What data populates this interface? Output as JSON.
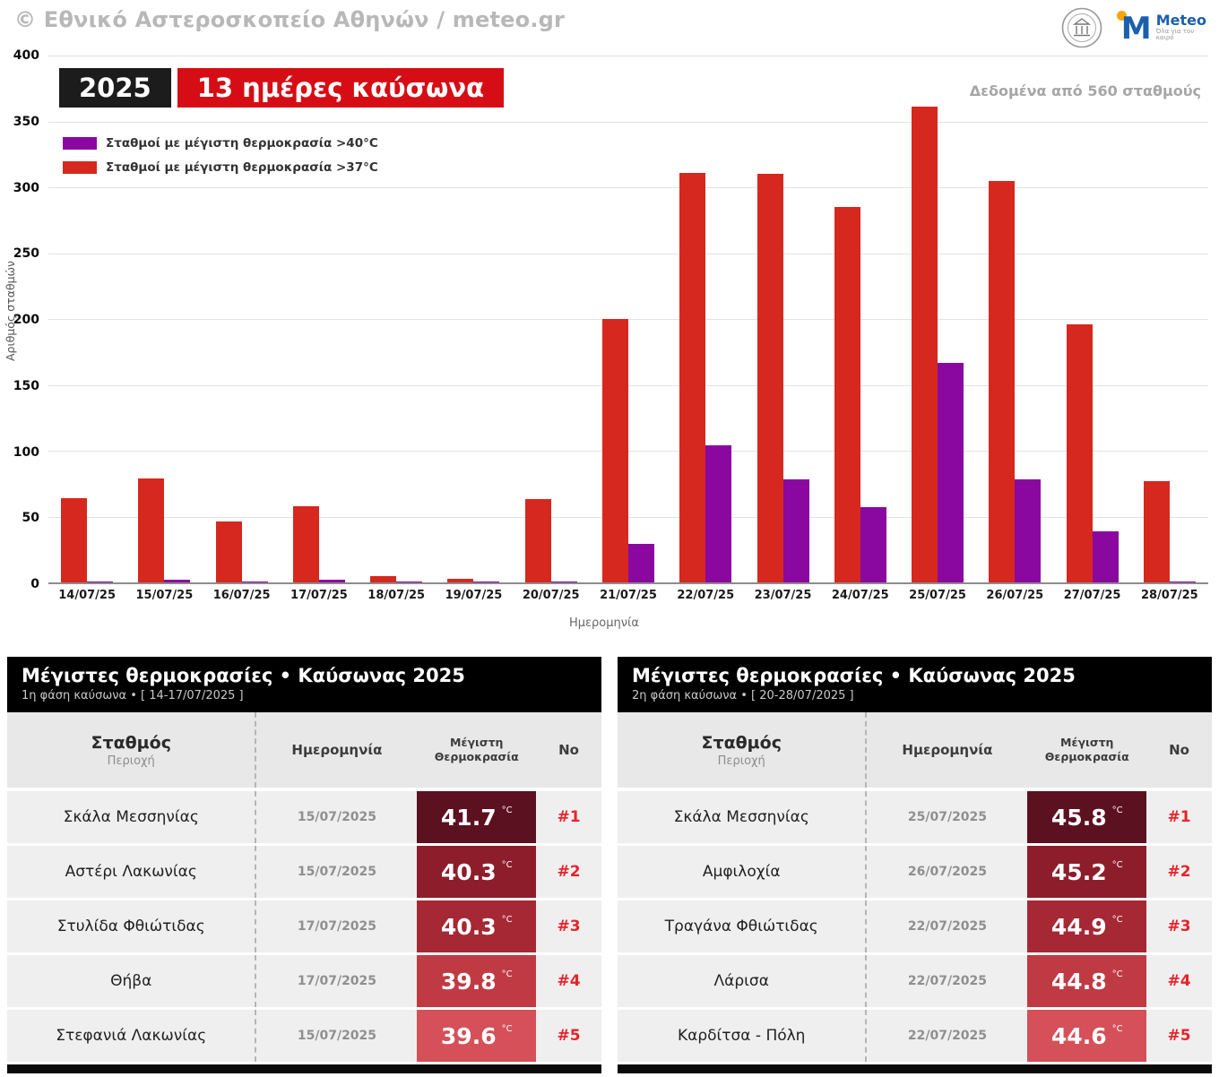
{
  "header": {
    "copyright": "© Εθνικό Αστεροσκοπείο Αθηνών / meteo.gr",
    "meteo_name": "Meteo",
    "meteo_tagline": "Όλα για τον καιρό"
  },
  "chart": {
    "year_badge": "2025",
    "title_badge": "13 ημέρες καύσωνα",
    "data_note": "Δεδομένα από 560 σταθμούς",
    "ylabel": "Αριθμός σταθμών",
    "xlabel": "Ημερομηνία",
    "legend": [
      {
        "label": "Σταθμοί με μέγιστη θερμοκρασία >40°C",
        "color": "#8a07a0"
      },
      {
        "label": "Σταθμοί με μέγιστη θερμοκρασία >37°C",
        "color": "#d6281e"
      }
    ]
  },
  "chart_data": {
    "type": "bar",
    "title": "2025 — 13 ημέρες καύσωνα",
    "categories": [
      "14/07/25",
      "15/07/25",
      "16/07/25",
      "17/07/25",
      "18/07/25",
      "19/07/25",
      "20/07/25",
      "21/07/25",
      "22/07/25",
      "23/07/25",
      "24/07/25",
      "25/07/25",
      "26/07/25",
      "27/07/25",
      "28/07/25"
    ],
    "series": [
      {
        "name": "Σταθμοί με μέγιστη θερμοκρασία >37°C",
        "color": "#d6281e",
        "values": [
          64,
          79,
          46,
          58,
          5,
          3,
          63,
          200,
          311,
          310,
          285,
          361,
          305,
          196,
          77
        ]
      },
      {
        "name": "Σταθμοί με μέγιστη θερμοκρασία >40°C",
        "color": "#8a07a0",
        "values": [
          1,
          2,
          1,
          2,
          1,
          1,
          1,
          29,
          104,
          78,
          57,
          167,
          78,
          39,
          1
        ]
      }
    ],
    "xlabel": "Ημερομηνία",
    "ylabel": "Αριθμός σταθμών",
    "ylim": [
      0,
      400
    ],
    "ytick_step": 50,
    "grid": true,
    "legend_position": "top-left",
    "annotation": "Δεδομένα από 560 σταθμούς"
  },
  "tables": [
    {
      "title": "Μέγιστες θερμοκρασίες • Καύσωνας 2025",
      "subtitle": "1η φάση καύσωνα • [ 14-17/07/2025 ]",
      "columns": {
        "station": "Σταθμός",
        "station_sub": "Περιοχή",
        "date": "Ημερομηνία",
        "temp": "Μέγιστη Θερμοκρασία",
        "rank": "No"
      },
      "rows": [
        {
          "station": "Σκάλα Μεσσηνίας",
          "date": "15/07/2025",
          "temp": "41.7",
          "unit": "°C",
          "rank": "#1",
          "color": "#5c1120"
        },
        {
          "station": "Αστέρι Λακωνίας",
          "date": "15/07/2025",
          "temp": "40.3",
          "unit": "°C",
          "rank": "#2",
          "color": "#8e1d2b"
        },
        {
          "station": "Στυλίδα Φθιώτιδας",
          "date": "17/07/2025",
          "temp": "40.3",
          "unit": "°C",
          "rank": "#3",
          "color": "#a52834"
        },
        {
          "station": "Θήβα",
          "date": "17/07/2025",
          "temp": "39.8",
          "unit": "°C",
          "rank": "#4",
          "color": "#c03a44"
        },
        {
          "station": "Στεφανιά Λακωνίας",
          "date": "15/07/2025",
          "temp": "39.6",
          "unit": "°C",
          "rank": "#5",
          "color": "#d55058"
        }
      ]
    },
    {
      "title": "Μέγιστες θερμοκρασίες • Καύσωνας 2025",
      "subtitle": "2η φάση καύσωνα • [ 20-28/07/2025 ]",
      "columns": {
        "station": "Σταθμός",
        "station_sub": "Περιοχή",
        "date": "Ημερομηνία",
        "temp": "Μέγιστη Θερμοκρασία",
        "rank": "No"
      },
      "rows": [
        {
          "station": "Σκάλα Μεσσηνίας",
          "date": "25/07/2025",
          "temp": "45.8",
          "unit": "°C",
          "rank": "#1",
          "color": "#5c1120"
        },
        {
          "station": "Αμφιλοχία",
          "date": "26/07/2025",
          "temp": "45.2",
          "unit": "°C",
          "rank": "#2",
          "color": "#8e1d2b"
        },
        {
          "station": "Τραγάνα Φθιώτιδας",
          "date": "22/07/2025",
          "temp": "44.9",
          "unit": "°C",
          "rank": "#3",
          "color": "#a52834"
        },
        {
          "station": "Λάρισα",
          "date": "22/07/2025",
          "temp": "44.8",
          "unit": "°C",
          "rank": "#4",
          "color": "#c03a44"
        },
        {
          "station": "Καρδίτσα - Πόλη",
          "date": "22/07/2025",
          "temp": "44.6",
          "unit": "°C",
          "rank": "#5",
          "color": "#d55058"
        }
      ]
    }
  ]
}
